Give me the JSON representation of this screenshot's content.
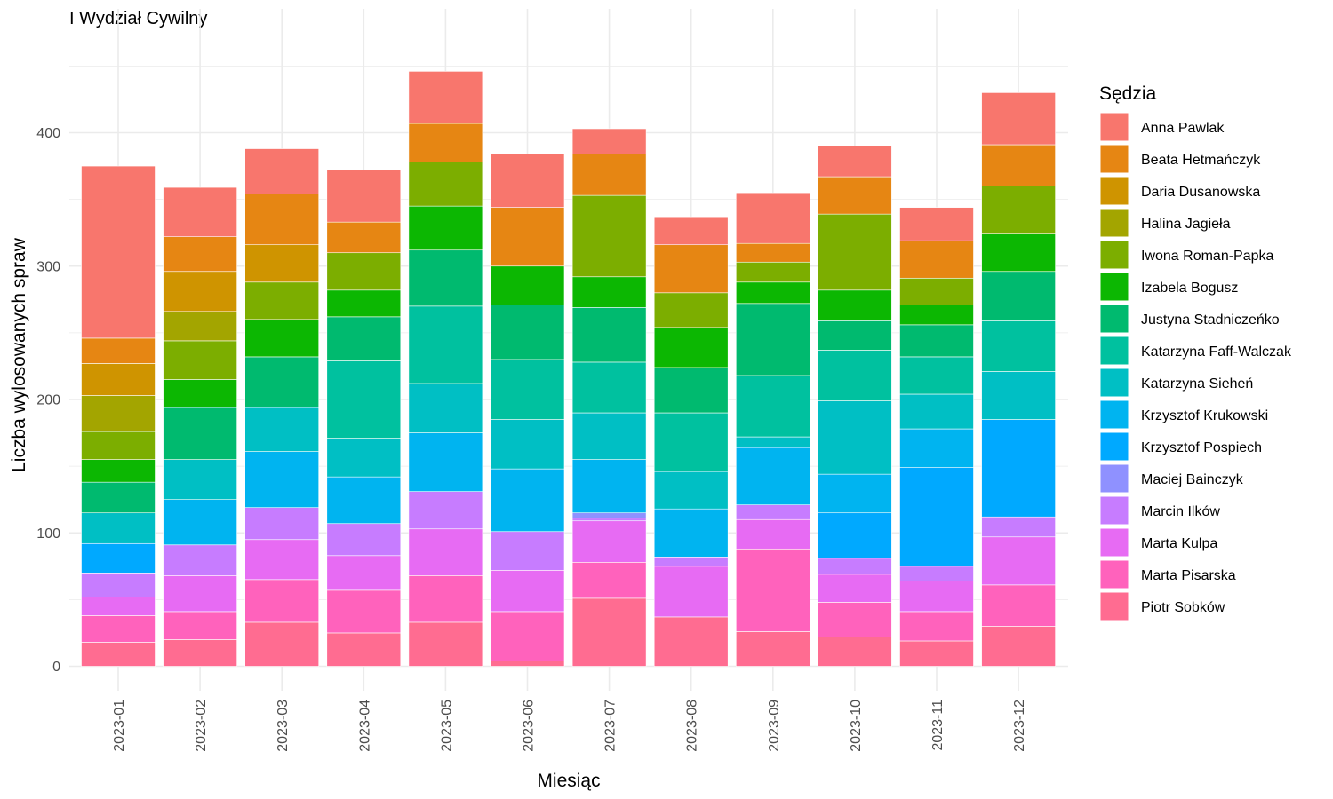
{
  "chart_data": {
    "type": "bar",
    "stacked": true,
    "title": "I Wydział Cywilny",
    "xlabel": "Miesiąc",
    "ylabel": "Liczba wylosowanych spraw",
    "ylim": [
      0,
      480
    ],
    "yticks": [
      0,
      100,
      200,
      300,
      400
    ],
    "grid": true,
    "legend_position": "right",
    "legend_title": "Sędzia",
    "categories": [
      "2023-01",
      "2023-02",
      "2023-03",
      "2023-04",
      "2023-05",
      "2023-06",
      "2023-07",
      "2023-08",
      "2023-09",
      "2023-10",
      "2023-11",
      "2023-12"
    ],
    "series": [
      {
        "name": "Piotr Sobków",
        "color": "#FF6C91",
        "values": [
          18,
          20,
          33,
          25,
          33,
          4,
          51,
          37,
          26,
          22,
          19,
          30
        ]
      },
      {
        "name": "Marta Pisarska",
        "color": "#FF62BC",
        "values": [
          20,
          21,
          32,
          32,
          35,
          37,
          27,
          0,
          62,
          26,
          22,
          31
        ]
      },
      {
        "name": "Marta Kulpa",
        "color": "#E76BF3",
        "values": [
          14,
          27,
          30,
          26,
          35,
          31,
          31,
          38,
          22,
          21,
          23,
          36
        ]
      },
      {
        "name": "Marcin Ilków",
        "color": "#C77CFF",
        "values": [
          18,
          23,
          24,
          24,
          28,
          29,
          2,
          7,
          11,
          12,
          11,
          15
        ]
      },
      {
        "name": "Maciej Bainczyk",
        "color": "#8F91FF",
        "values": [
          0,
          0,
          0,
          0,
          0,
          0,
          4,
          0,
          0,
          0,
          0,
          0
        ]
      },
      {
        "name": "Krzysztof Pospiech",
        "color": "#00A9FF",
        "values": [
          22,
          0,
          0,
          0,
          0,
          0,
          0,
          0,
          0,
          34,
          74,
          73
        ]
      },
      {
        "name": "Krzysztof Krukowski",
        "color": "#00B4F0",
        "values": [
          0,
          34,
          42,
          35,
          44,
          47,
          40,
          36,
          43,
          29,
          29,
          0
        ]
      },
      {
        "name": "Katarzyna Sieheń",
        "color": "#00BFC4",
        "values": [
          23,
          30,
          33,
          29,
          37,
          37,
          35,
          28,
          8,
          55,
          26,
          36
        ]
      },
      {
        "name": "Katarzyna Faff-Walczak",
        "color": "#00C19F",
        "values": [
          0,
          0,
          0,
          58,
          58,
          45,
          38,
          44,
          46,
          38,
          28,
          38
        ]
      },
      {
        "name": "Justyna Stadniczeńko",
        "color": "#00BA6F",
        "values": [
          23,
          39,
          38,
          33,
          42,
          41,
          41,
          34,
          54,
          22,
          24,
          37
        ]
      },
      {
        "name": "Izabela Bogusz",
        "color": "#0CB702",
        "values": [
          17,
          21,
          28,
          20,
          33,
          29,
          23,
          30,
          16,
          23,
          15,
          28
        ]
      },
      {
        "name": "Iwona Roman-Papka",
        "color": "#7CAE00",
        "values": [
          21,
          29,
          28,
          28,
          33,
          0,
          61,
          26,
          15,
          57,
          20,
          36
        ]
      },
      {
        "name": "Halina Jagieła",
        "color": "#A3A500",
        "values": [
          27,
          22,
          0,
          0,
          0,
          0,
          0,
          0,
          0,
          0,
          0,
          0
        ]
      },
      {
        "name": "Daria Dusanowska",
        "color": "#CF9400",
        "values": [
          24,
          30,
          28,
          0,
          0,
          0,
          0,
          0,
          0,
          0,
          0,
          0
        ]
      },
      {
        "name": "Beata Hetmańczyk",
        "color": "#E68613",
        "values": [
          19,
          26,
          38,
          23,
          29,
          44,
          31,
          36,
          14,
          28,
          28,
          31
        ]
      },
      {
        "name": "Anna Pawlak",
        "color": "#F8766D",
        "values": [
          129,
          37,
          34,
          39,
          39,
          40,
          19,
          21,
          38,
          23,
          25,
          39
        ]
      }
    ]
  }
}
